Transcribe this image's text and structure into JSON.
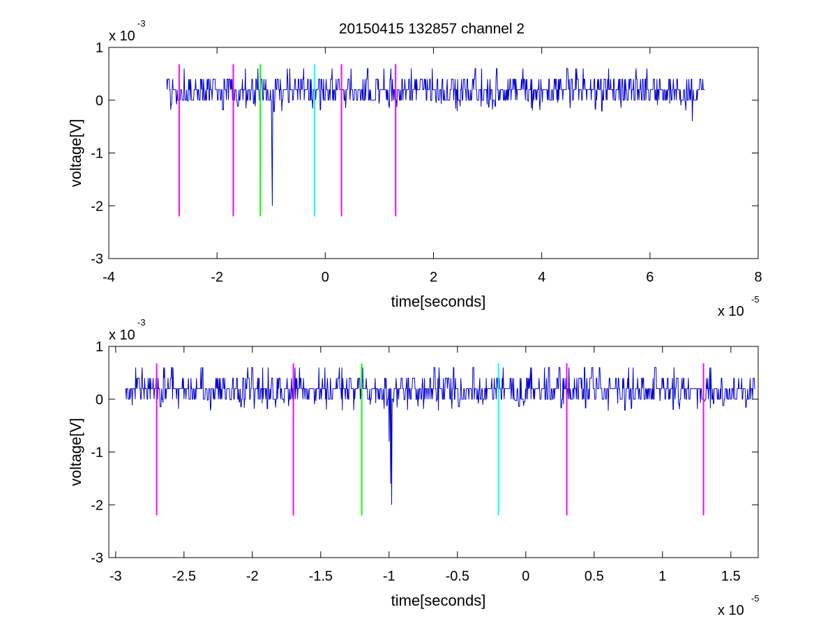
{
  "figure": {
    "title": "20150415 132857 channel 2"
  },
  "chart_data": [
    {
      "type": "line",
      "title": "20150415 132857 channel 2",
      "xlabel": "time[seconds]",
      "ylabel": "voltage[V]",
      "x_exponent": "x 10",
      "x_exponent_power": "-5",
      "y_exponent": "x 10",
      "y_exponent_power": "-3",
      "xlim": [
        -4,
        8
      ],
      "ylim": [
        -3,
        1
      ],
      "xticks": [
        -4,
        -2,
        0,
        2,
        4,
        6,
        8
      ],
      "xtick_labels": [
        "-4",
        "-2",
        "0",
        "2",
        "4",
        "6",
        "8"
      ],
      "yticks": [
        -3,
        -2,
        -1,
        0,
        1
      ],
      "ytick_labels": [
        "-3",
        "-2",
        "-1",
        "0",
        "1"
      ],
      "grid": false,
      "series": [
        {
          "color": "#0000cc",
          "x_range": [
            -2.93,
            7.02
          ],
          "baseline": 0.2,
          "noise_levels": [
            0,
            0.2,
            0.4
          ],
          "dips": [
            {
              "x": -0.98,
              "y": -2.0
            },
            {
              "x": -0.99,
              "y": -1.0
            },
            {
              "x": 6.78,
              "y": -0.4
            }
          ]
        }
      ],
      "markers": [
        {
          "x": -2.7,
          "color": "#ff00ff",
          "y_range": [
            -2.2,
            0.68
          ]
        },
        {
          "x": -1.7,
          "color": "#ff00ff",
          "y_range": [
            -2.2,
            0.68
          ]
        },
        {
          "x": -1.2,
          "color": "#00ff00",
          "y_range": [
            -2.2,
            0.68
          ]
        },
        {
          "x": -0.2,
          "color": "#00ffff",
          "y_range": [
            -2.2,
            0.68
          ]
        },
        {
          "x": 0.3,
          "color": "#ff00ff",
          "y_range": [
            -2.2,
            0.68
          ]
        },
        {
          "x": 1.3,
          "color": "#ff00ff",
          "y_range": [
            -2.2,
            0.68
          ]
        }
      ]
    },
    {
      "type": "line",
      "title": "",
      "xlabel": "time[seconds]",
      "ylabel": "voltage[V]",
      "x_exponent": "x 10",
      "x_exponent_power": "-5",
      "y_exponent": "x 10",
      "y_exponent_power": "-3",
      "xlim": [
        -3.05,
        1.7
      ],
      "ylim": [
        -3,
        1
      ],
      "xticks": [
        -3,
        -2.5,
        -2,
        -1.5,
        -1,
        -0.5,
        0,
        0.5,
        1,
        1.5
      ],
      "xtick_labels": [
        "-3",
        "-2.5",
        "-2",
        "-1.5",
        "-1",
        "-0.5",
        "0",
        "0.5",
        "1",
        "1.5"
      ],
      "yticks": [
        -3,
        -2,
        -1,
        0,
        1
      ],
      "ytick_labels": [
        "-3",
        "-2",
        "-1",
        "0",
        "1"
      ],
      "grid": false,
      "series": [
        {
          "color": "#0000cc",
          "x_range": [
            -2.93,
            1.68
          ],
          "baseline": 0.2,
          "noise_levels": [
            0,
            0.2,
            0.4
          ],
          "dips": [
            {
              "x": -0.98,
              "y": -2.0
            },
            {
              "x": -0.99,
              "y": -1.6
            },
            {
              "x": -1.0,
              "y": -0.8
            }
          ]
        }
      ],
      "markers": [
        {
          "x": -2.7,
          "color": "#ff00ff",
          "y_range": [
            -2.2,
            0.68
          ]
        },
        {
          "x": -1.7,
          "color": "#ff00ff",
          "y_range": [
            -2.2,
            0.68
          ]
        },
        {
          "x": -1.2,
          "color": "#00ff00",
          "y_range": [
            -2.2,
            0.68
          ]
        },
        {
          "x": -0.2,
          "color": "#00ffff",
          "y_range": [
            -2.2,
            0.68
          ]
        },
        {
          "x": 0.3,
          "color": "#ff00ff",
          "y_range": [
            -2.2,
            0.68
          ]
        },
        {
          "x": 1.3,
          "color": "#ff00ff",
          "y_range": [
            -2.2,
            0.68
          ]
        }
      ]
    }
  ]
}
